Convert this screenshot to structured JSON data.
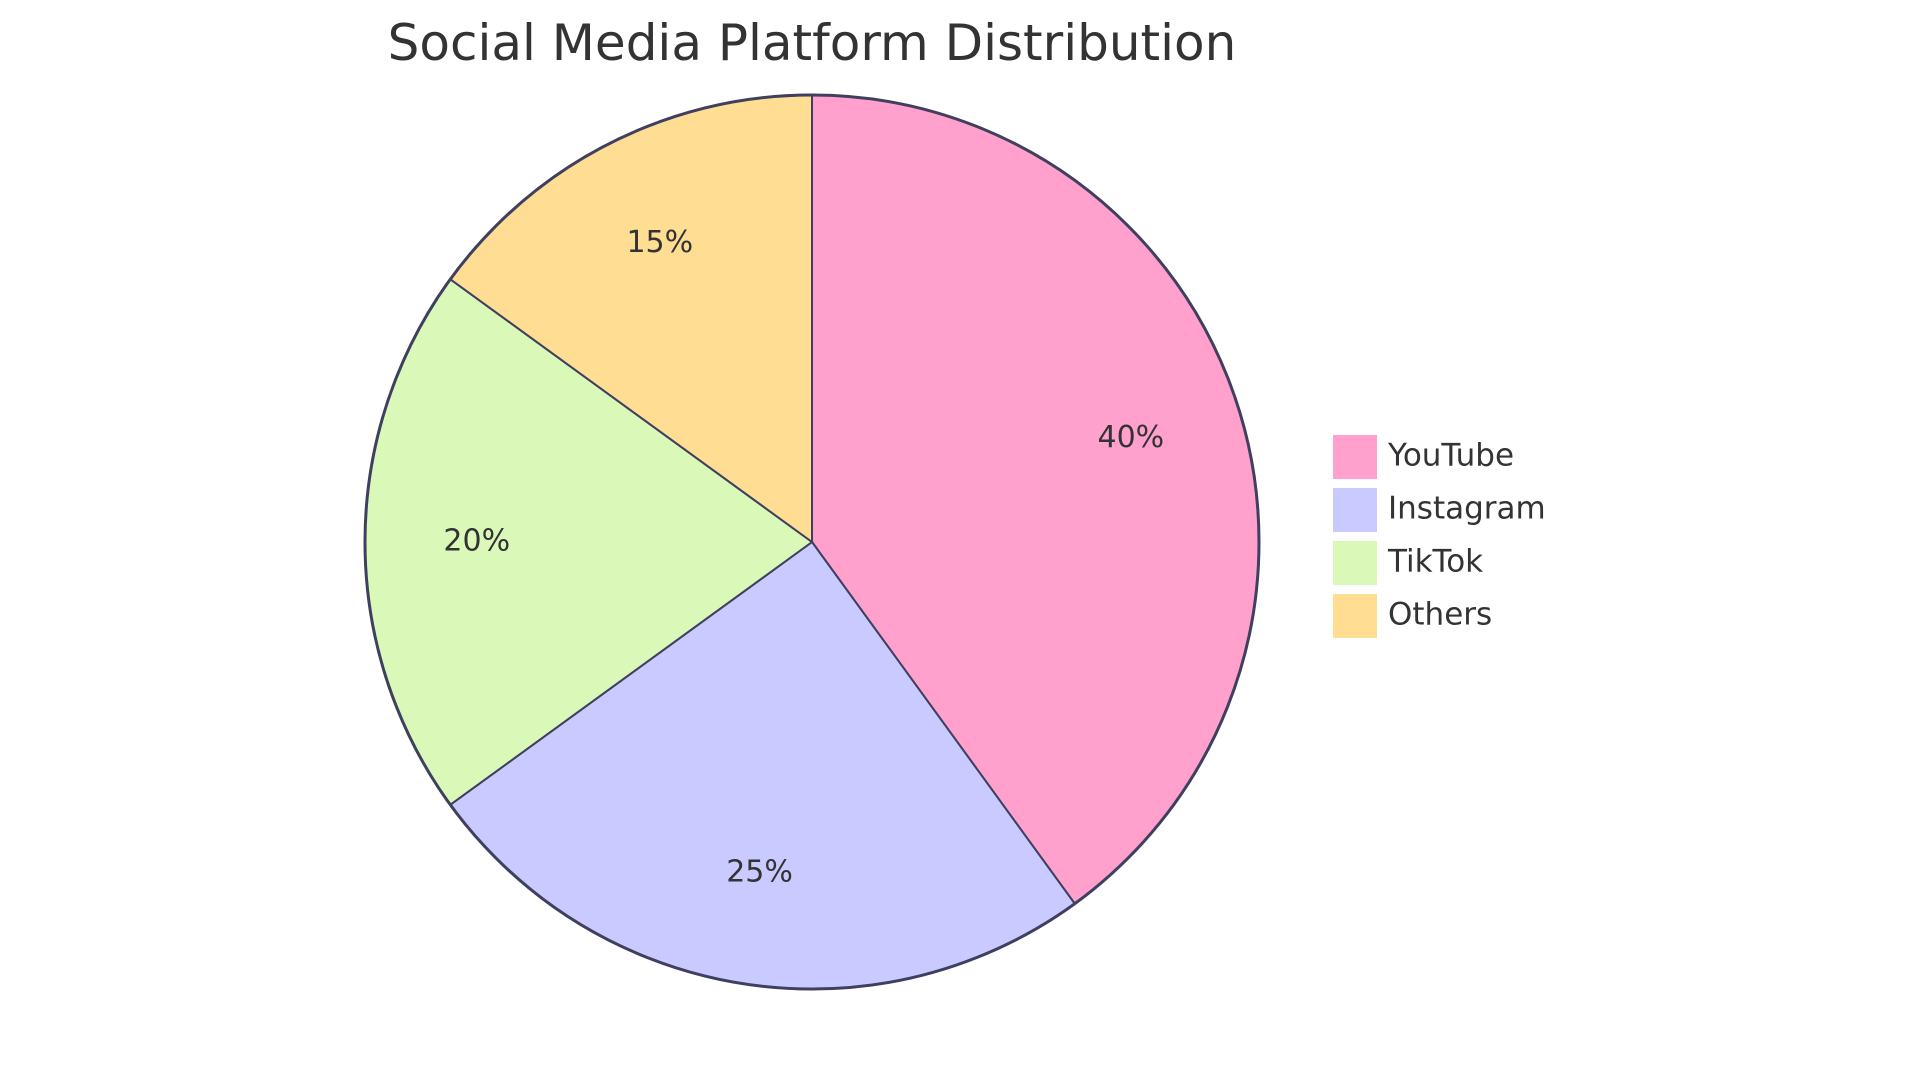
{
  "chart_data": {
    "type": "pie",
    "title": "Social Media Platform Distribution",
    "categories": [
      "YouTube",
      "Instagram",
      "TikTok",
      "Others"
    ],
    "values": [
      40,
      25,
      20,
      15
    ],
    "labels": [
      "40%",
      "25%",
      "20%",
      "15%"
    ],
    "colors": [
      "#ffa1cc",
      "#c9caff",
      "#daf9b8",
      "#ffdd93"
    ],
    "legend_position": "right"
  }
}
